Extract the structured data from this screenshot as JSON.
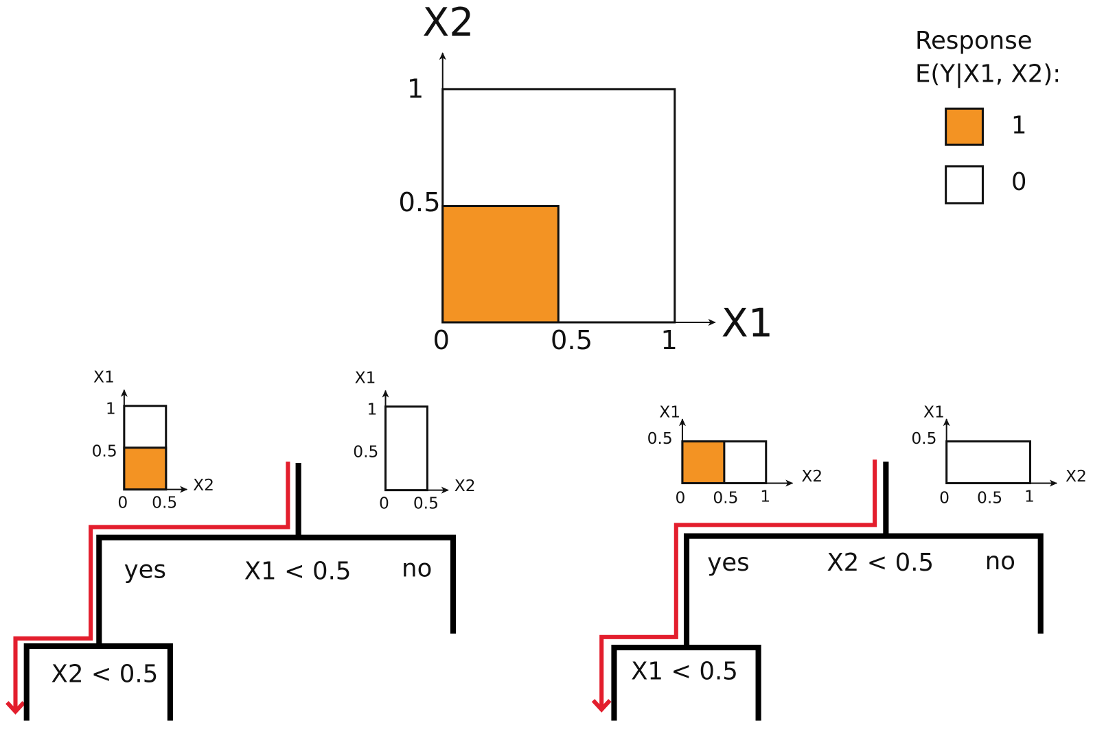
{
  "main_plot": {
    "x_label": "X1",
    "y_label": "X2",
    "x_ticks": [
      "0",
      "0.5",
      "1"
    ],
    "y_ticks": [
      "1",
      "0.5"
    ]
  },
  "legend": {
    "title_lines": [
      "Response",
      "E(Y|X1, X2):"
    ],
    "items": [
      "1",
      "0"
    ]
  },
  "left_tree": {
    "split": "X1 < 0.5",
    "yes": "yes",
    "no": "no",
    "child_split": "X2 < 0.5",
    "panels": [
      {
        "y_label": "X1",
        "x_label": "X2",
        "y_ticks": [
          "1",
          "0.5"
        ],
        "x_ticks": [
          "0",
          "0.5"
        ]
      },
      {
        "y_label": "X1",
        "x_label": "X2",
        "y_ticks": [
          "1",
          "0.5"
        ],
        "x_ticks": [
          "0",
          "0.5"
        ]
      }
    ]
  },
  "right_tree": {
    "split": "X2 < 0.5",
    "yes": "yes",
    "no": "no",
    "child_split": "X1 < 0.5",
    "panels": [
      {
        "y_label": "X1",
        "x_label": "X2",
        "y_ticks": [
          "0.5"
        ],
        "x_ticks": [
          "0",
          "0.5",
          "1"
        ]
      },
      {
        "y_label": "X1",
        "x_label": "X2",
        "y_ticks": [
          "0.5"
        ],
        "x_ticks": [
          "0",
          "0.5",
          "1"
        ]
      }
    ]
  }
}
